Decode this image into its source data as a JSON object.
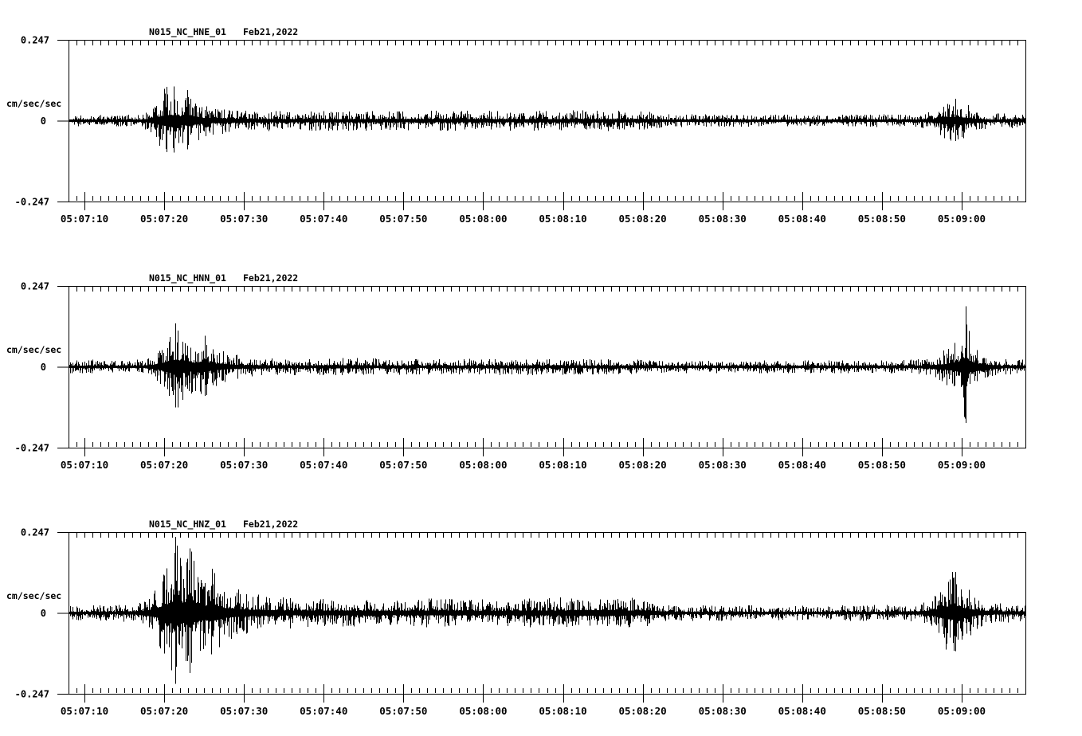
{
  "page": {
    "background": "#ffffff",
    "ink": "#000000",
    "description_text": "Three-panel seismogram strip chart, station N015 network NC, Feb21,2022"
  },
  "chart_data": [
    {
      "type": "line",
      "station": "N015_NC_HNE_01",
      "date": "Feb21,2022",
      "title": "N015_NC_HNE_01   Feb21,2022",
      "ylabel": "cm/sec/sec",
      "ylim": [
        -0.247,
        0.247
      ],
      "ytick_labels": [
        "0.247",
        "0",
        "-0.247"
      ],
      "x_start": "05:07:08",
      "x_end": "05:09:08",
      "duration_s": 120,
      "x_tick_interval_s": 10,
      "x_minor_tick_interval_s": 1,
      "x_tick_labels": [
        "05:07:10",
        "05:07:20",
        "05:07:30",
        "05:07:40",
        "05:07:50",
        "05:08:00",
        "05:08:10",
        "05:08:20",
        "05:08:30",
        "05:08:40",
        "05:08:50",
        "05:09:00"
      ],
      "x_tick_offsets_s": [
        2,
        12,
        22,
        32,
        42,
        52,
        62,
        72,
        82,
        92,
        102,
        112
      ],
      "amplitude_envelope": {
        "units": "cm/sec/sec peak amplitude vs seconds after 05:07:08",
        "points": [
          [
            0,
            0.018
          ],
          [
            8,
            0.018
          ],
          [
            9,
            0.022
          ],
          [
            10,
            0.035
          ],
          [
            11,
            0.065
          ],
          [
            12,
            0.1
          ],
          [
            13,
            0.11
          ],
          [
            14,
            0.085
          ],
          [
            15,
            0.095
          ],
          [
            16,
            0.07
          ],
          [
            17,
            0.055
          ],
          [
            18,
            0.048
          ],
          [
            20,
            0.04
          ],
          [
            22,
            0.034
          ],
          [
            26,
            0.031
          ],
          [
            32,
            0.031
          ],
          [
            40,
            0.03
          ],
          [
            48,
            0.032
          ],
          [
            56,
            0.03
          ],
          [
            64,
            0.032
          ],
          [
            70,
            0.032
          ],
          [
            73,
            0.03
          ],
          [
            74,
            0.022
          ],
          [
            76,
            0.02
          ],
          [
            84,
            0.019
          ],
          [
            92,
            0.018
          ],
          [
            100,
            0.019
          ],
          [
            106,
            0.02
          ],
          [
            108,
            0.026
          ],
          [
            109,
            0.042
          ],
          [
            110,
            0.062
          ],
          [
            111,
            0.068
          ],
          [
            112,
            0.062
          ],
          [
            113,
            0.048
          ],
          [
            114,
            0.032
          ],
          [
            115,
            0.026
          ],
          [
            116,
            0.024
          ],
          [
            120,
            0.024
          ]
        ]
      },
      "peak_spike_times_s": [
        12.3,
        13.2,
        14.9,
        111.2
      ]
    },
    {
      "type": "line",
      "station": "N015_NC_HNN_01",
      "date": "Feb21,2022",
      "title": "N015_NC_HNN_01   Feb21,2022",
      "ylabel": "cm/sec/sec",
      "ylim": [
        -0.247,
        0.247
      ],
      "ytick_labels": [
        "0.247",
        "0",
        "-0.247"
      ],
      "x_start": "05:07:08",
      "x_end": "05:09:08",
      "duration_s": 120,
      "x_tick_interval_s": 10,
      "x_minor_tick_interval_s": 1,
      "x_tick_labels": [
        "05:07:10",
        "05:07:20",
        "05:07:30",
        "05:07:40",
        "05:07:50",
        "05:08:00",
        "05:08:10",
        "05:08:20",
        "05:08:30",
        "05:08:40",
        "05:08:50",
        "05:09:00"
      ],
      "x_tick_offsets_s": [
        2,
        12,
        22,
        32,
        42,
        52,
        62,
        72,
        82,
        92,
        102,
        112
      ],
      "amplitude_envelope": {
        "units": "cm/sec/sec peak amplitude vs seconds after 05:07:08",
        "points": [
          [
            0,
            0.019
          ],
          [
            3,
            0.023
          ],
          [
            5,
            0.021
          ],
          [
            8,
            0.02
          ],
          [
            10,
            0.028
          ],
          [
            11,
            0.048
          ],
          [
            12,
            0.085
          ],
          [
            13,
            0.125
          ],
          [
            13.5,
            0.135
          ],
          [
            14,
            0.112
          ],
          [
            15,
            0.095
          ],
          [
            16,
            0.075
          ],
          [
            17,
            0.098
          ],
          [
            18,
            0.068
          ],
          [
            20,
            0.045
          ],
          [
            22,
            0.032
          ],
          [
            25,
            0.026
          ],
          [
            30,
            0.025
          ],
          [
            35,
            0.028
          ],
          [
            40,
            0.025
          ],
          [
            48,
            0.024
          ],
          [
            56,
            0.026
          ],
          [
            64,
            0.024
          ],
          [
            70,
            0.023
          ],
          [
            74,
            0.02
          ],
          [
            82,
            0.019
          ],
          [
            90,
            0.02
          ],
          [
            98,
            0.02
          ],
          [
            104,
            0.02
          ],
          [
            107,
            0.024
          ],
          [
            109,
            0.038
          ],
          [
            110,
            0.055
          ],
          [
            111,
            0.075
          ],
          [
            112,
            0.11
          ],
          [
            112.5,
            0.185
          ],
          [
            113,
            0.105
          ],
          [
            114,
            0.065
          ],
          [
            115,
            0.04
          ],
          [
            116,
            0.028
          ],
          [
            117,
            0.024
          ],
          [
            120,
            0.023
          ]
        ]
      },
      "peak_spike_times_s": [
        13.4,
        17.1,
        112.5
      ]
    },
    {
      "type": "line",
      "station": "N015_NC_HNZ_01",
      "date": "Feb21,2022",
      "title": "N015_NC_HNZ_01   Feb21,2022",
      "ylabel": "cm/sec/sec",
      "ylim": [
        -0.247,
        0.247
      ],
      "ytick_labels": [
        "0.247",
        "0",
        "-0.247"
      ],
      "x_start": "05:07:08",
      "x_end": "05:09:08",
      "duration_s": 120,
      "x_tick_interval_s": 10,
      "x_minor_tick_interval_s": 1,
      "x_tick_labels": [
        "05:07:10",
        "05:07:20",
        "05:07:30",
        "05:07:40",
        "05:07:50",
        "05:08:00",
        "05:08:10",
        "05:08:20",
        "05:08:30",
        "05:08:40",
        "05:08:50",
        "05:09:00"
      ],
      "x_tick_offsets_s": [
        2,
        12,
        22,
        32,
        42,
        52,
        62,
        72,
        82,
        92,
        102,
        112
      ],
      "amplitude_envelope": {
        "units": "cm/sec/sec peak amplitude vs seconds after 05:07:08",
        "points": [
          [
            0,
            0.023
          ],
          [
            6,
            0.025
          ],
          [
            9,
            0.032
          ],
          [
            10,
            0.05
          ],
          [
            11,
            0.085
          ],
          [
            12,
            0.14
          ],
          [
            13,
            0.21
          ],
          [
            13.5,
            0.238
          ],
          [
            14,
            0.185
          ],
          [
            15,
            0.205
          ],
          [
            16,
            0.165
          ],
          [
            17,
            0.135
          ],
          [
            18,
            0.145
          ],
          [
            19,
            0.115
          ],
          [
            20,
            0.085
          ],
          [
            22,
            0.065
          ],
          [
            25,
            0.052
          ],
          [
            30,
            0.045
          ],
          [
            35,
            0.042
          ],
          [
            40,
            0.04
          ],
          [
            45,
            0.044
          ],
          [
            50,
            0.042
          ],
          [
            55,
            0.04
          ],
          [
            58,
            0.044
          ],
          [
            62,
            0.048
          ],
          [
            66,
            0.052
          ],
          [
            70,
            0.049
          ],
          [
            73,
            0.042
          ],
          [
            74,
            0.028
          ],
          [
            78,
            0.025
          ],
          [
            86,
            0.023
          ],
          [
            94,
            0.024
          ],
          [
            102,
            0.025
          ],
          [
            106,
            0.027
          ],
          [
            107,
            0.032
          ],
          [
            108,
            0.045
          ],
          [
            109,
            0.07
          ],
          [
            110,
            0.115
          ],
          [
            111,
            0.13
          ],
          [
            112,
            0.105
          ],
          [
            113,
            0.075
          ],
          [
            114,
            0.05
          ],
          [
            115,
            0.036
          ],
          [
            116,
            0.03
          ],
          [
            120,
            0.029
          ]
        ]
      },
      "peak_spike_times_s": [
        13.4,
        15.2,
        111.2
      ]
    }
  ]
}
